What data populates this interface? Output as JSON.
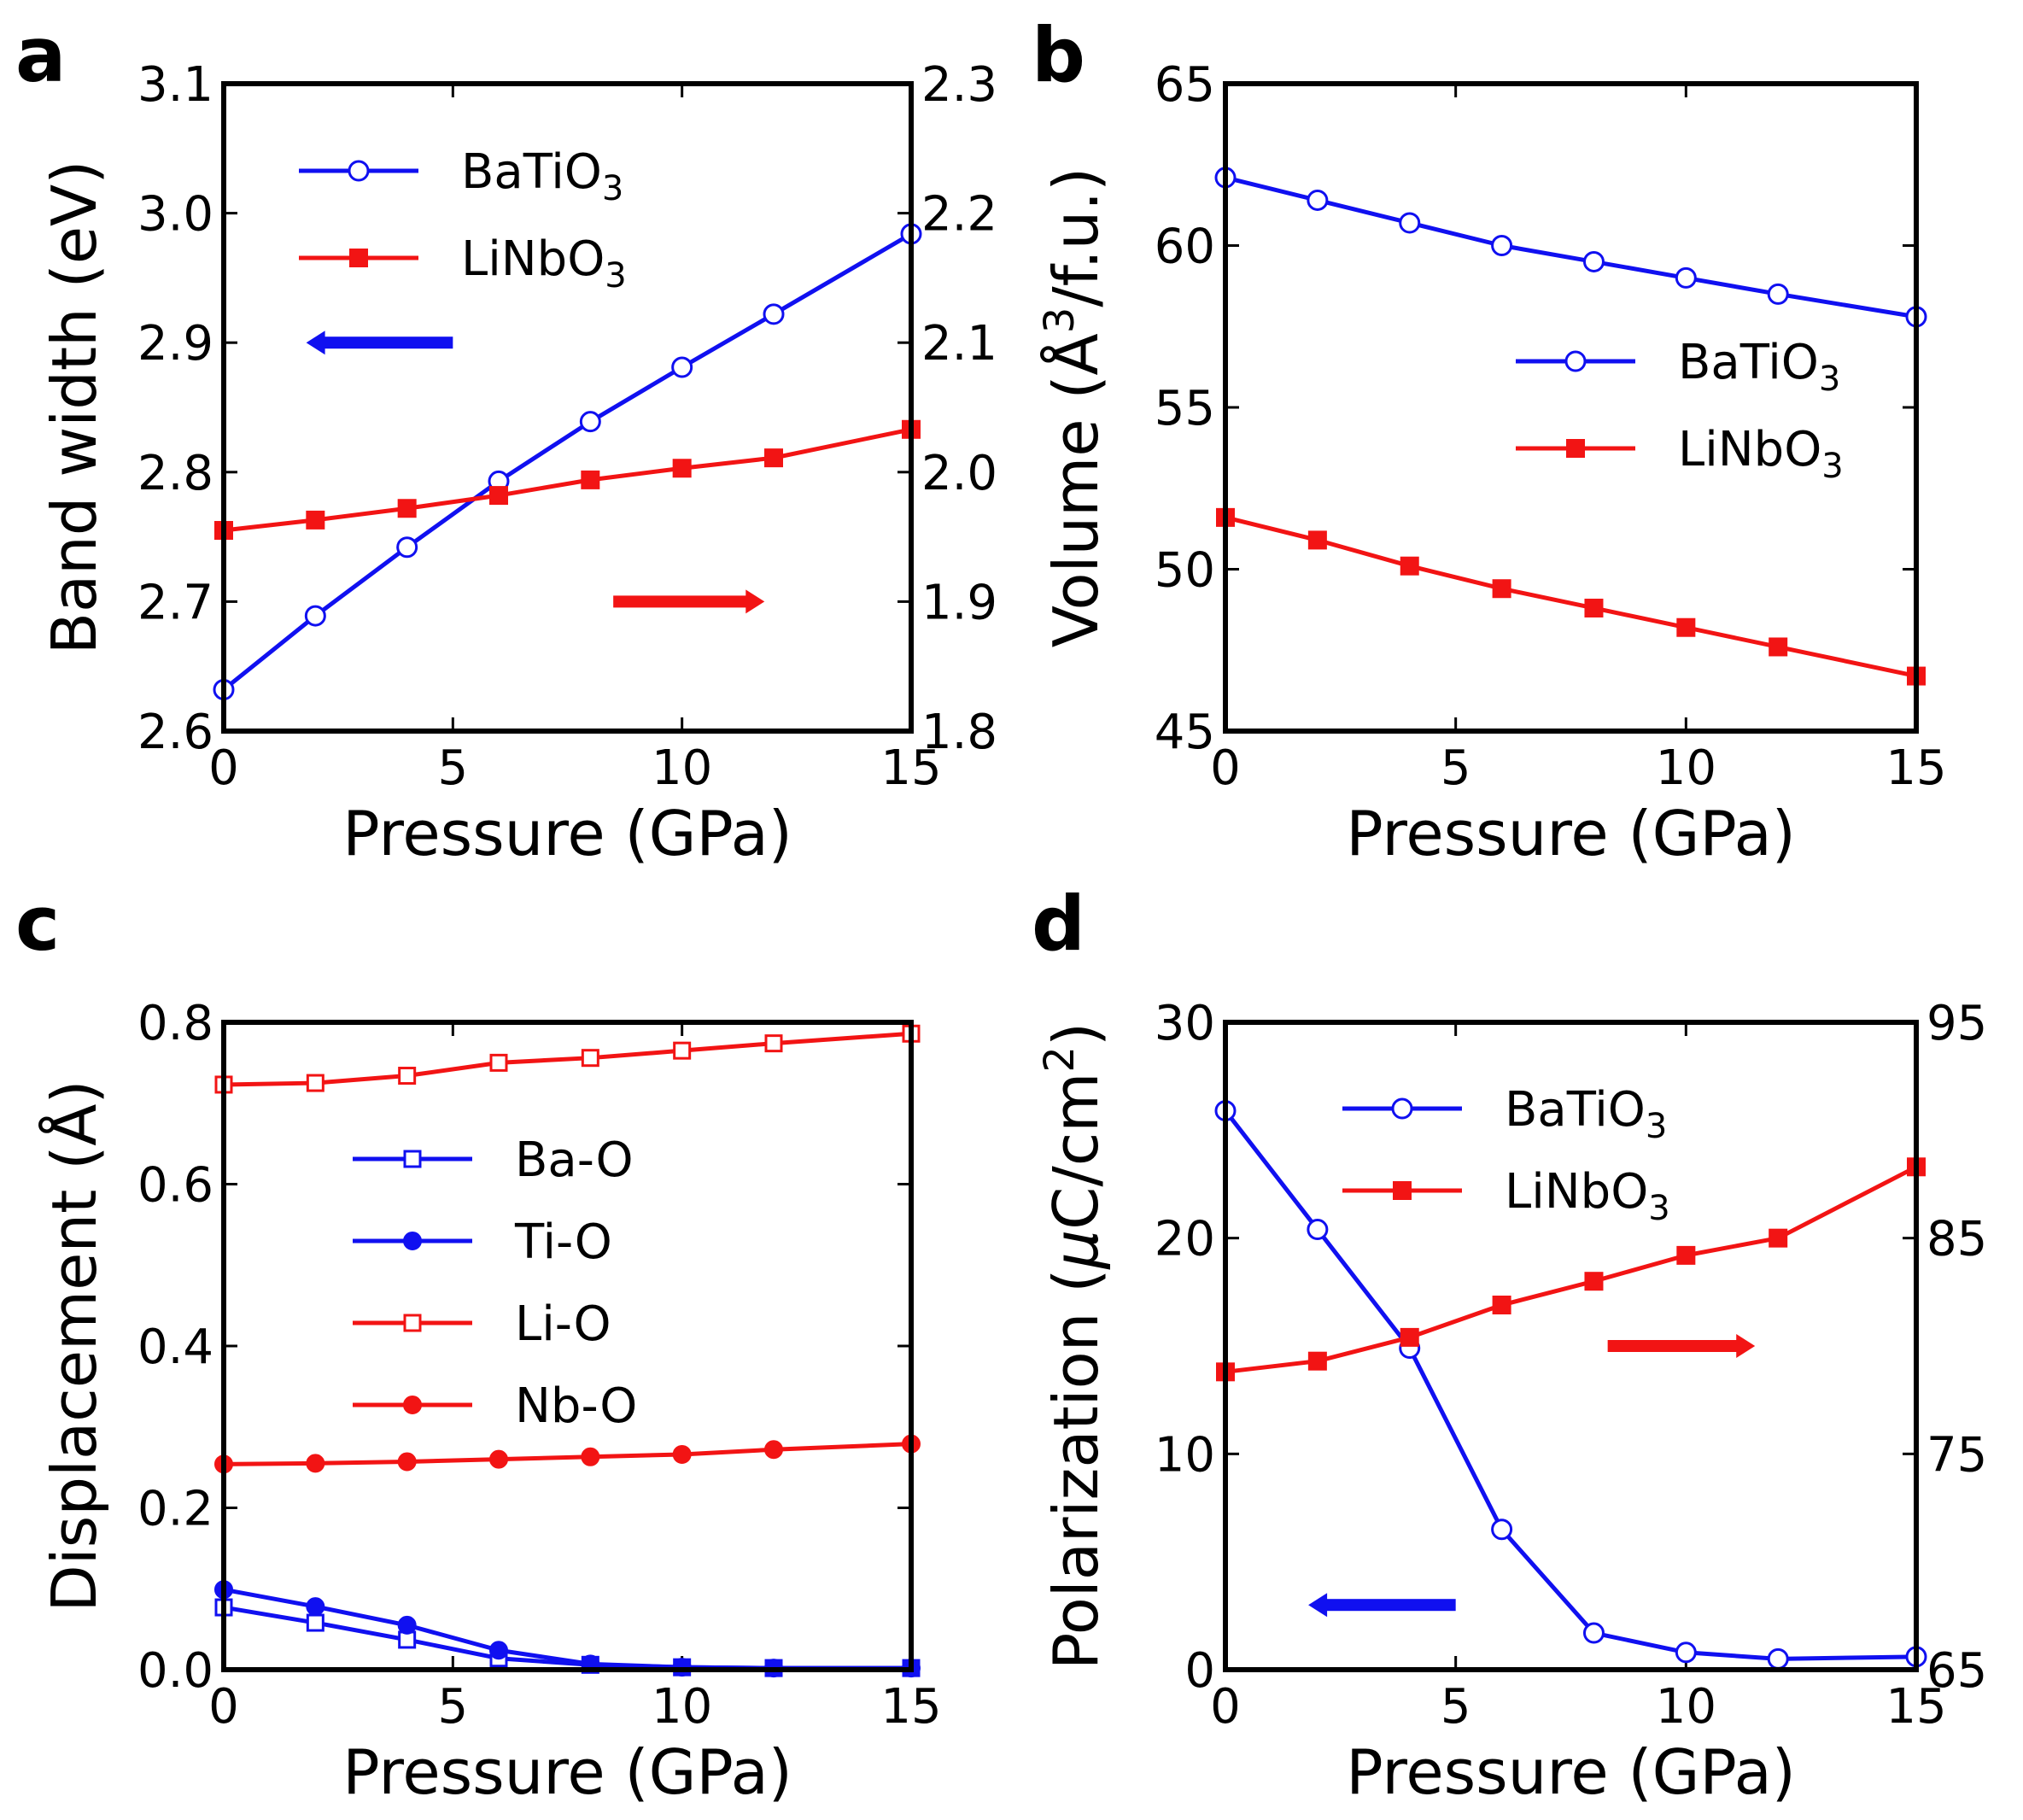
{
  "figure": "four-panel pressure dependence",
  "colors": {
    "blue": "#1010f0",
    "red": "#f21414",
    "axis": "#000000"
  },
  "chart_data": [
    {
      "panel": "a",
      "type": "line",
      "xlabel": "Pressure (GPa)",
      "ylabel": "Band width (eV)",
      "xlim": [
        0,
        15
      ],
      "xticks": [
        "0",
        "5",
        "10",
        "15"
      ],
      "ylim": [
        2.6,
        3.1
      ],
      "yticks": [
        "2.6",
        "2.7",
        "2.8",
        "2.9",
        "3.0",
        "3.1"
      ],
      "y2lim": [
        1.8,
        2.3
      ],
      "y2ticks": [
        "1.8",
        "1.9",
        "2.0",
        "2.1",
        "2.2",
        "2.3"
      ],
      "legend": "top-left",
      "series": [
        {
          "name": "BaTiO",
          "sub": "3",
          "axis": "left",
          "marker": "open-circle",
          "color": "blue",
          "x": [
            0,
            2,
            4,
            6,
            8,
            10,
            12,
            15
          ],
          "values": [
            2.632,
            2.689,
            2.742,
            2.793,
            2.839,
            2.881,
            2.922,
            2.984
          ]
        },
        {
          "name": "LiNbO",
          "sub": "3",
          "axis": "right",
          "marker": "filled-square",
          "color": "red",
          "x": [
            0,
            2,
            4,
            6,
            8,
            10,
            12,
            15
          ],
          "values": [
            1.955,
            1.963,
            1.972,
            1.982,
            1.994,
            2.003,
            2.011,
            2.033
          ]
        }
      ],
      "arrows": [
        {
          "color": "blue",
          "direction": "left",
          "x": [
            1.8,
            5
          ],
          "y": 2.9,
          "axis": "left"
        },
        {
          "color": "red",
          "direction": "right",
          "x": [
            8.5,
            11.8
          ],
          "y": 1.9,
          "axis": "right"
        }
      ]
    },
    {
      "panel": "b",
      "type": "line",
      "xlabel": "Pressure (GPa)",
      "ylabel_parts": [
        "Volume (Å",
        "3",
        "/f.u.)"
      ],
      "xlim": [
        0,
        15
      ],
      "xticks": [
        "0",
        "5",
        "10",
        "15"
      ],
      "ylim": [
        45,
        65
      ],
      "yticks": [
        "45",
        "50",
        "55",
        "60",
        "65"
      ],
      "legend": "center-right",
      "series": [
        {
          "name": "BaTiO",
          "sub": "3",
          "marker": "open-circle",
          "color": "blue",
          "x": [
            0,
            2,
            4,
            6,
            8,
            10,
            12,
            15
          ],
          "values": [
            62.1,
            61.4,
            60.7,
            60.0,
            59.5,
            59.0,
            58.5,
            57.8
          ]
        },
        {
          "name": "LiNbO",
          "sub": "3",
          "marker": "filled-square",
          "color": "red",
          "x": [
            0,
            2,
            4,
            6,
            8,
            10,
            12,
            15
          ],
          "values": [
            51.6,
            50.9,
            50.1,
            49.4,
            48.8,
            48.2,
            47.6,
            46.7
          ]
        }
      ]
    },
    {
      "panel": "c",
      "type": "line",
      "xlabel": "Pressure (GPa)",
      "ylabel": "Displacement (Å)",
      "xlim": [
        0,
        15
      ],
      "xticks": [
        "0",
        "5",
        "10",
        "15"
      ],
      "ylim": [
        0,
        0.8
      ],
      "yticks": [
        "0.0",
        "0.2",
        "0.4",
        "0.6",
        "0.8"
      ],
      "legend": "center-left",
      "series": [
        {
          "name": "Ba-O",
          "marker": "open-square",
          "color": "blue",
          "x": [
            0,
            2,
            4,
            6,
            8,
            10,
            12,
            15
          ],
          "values": [
            0.077,
            0.058,
            0.037,
            0.014,
            0.006,
            0.003,
            0.002,
            0.002
          ]
        },
        {
          "name": "Ti-O",
          "marker": "filled-circle",
          "color": "blue",
          "x": [
            0,
            2,
            4,
            6,
            8,
            10,
            12,
            15
          ],
          "values": [
            0.099,
            0.078,
            0.055,
            0.024,
            0.007,
            0.003,
            0.002,
            0.002
          ]
        },
        {
          "name": "Li-O",
          "marker": "open-square",
          "color": "red",
          "x": [
            0,
            2,
            4,
            6,
            8,
            10,
            12,
            15
          ],
          "values": [
            0.723,
            0.725,
            0.734,
            0.75,
            0.756,
            0.765,
            0.774,
            0.786
          ]
        },
        {
          "name": "Nb-O",
          "marker": "filled-circle",
          "color": "red",
          "x": [
            0,
            2,
            4,
            6,
            8,
            10,
            12,
            15
          ],
          "values": [
            0.254,
            0.255,
            0.257,
            0.26,
            0.263,
            0.266,
            0.272,
            0.279
          ]
        }
      ]
    },
    {
      "panel": "d",
      "type": "line",
      "xlabel": "Pressure (GPa)",
      "ylabel_parts": [
        "Polarization (",
        "μ",
        "C/cm",
        "2",
        ")"
      ],
      "xlim": [
        0,
        15
      ],
      "xticks": [
        "0",
        "5",
        "10",
        "15"
      ],
      "ylim": [
        0,
        30
      ],
      "yticks": [
        "0",
        "10",
        "20",
        "30"
      ],
      "y2lim": [
        65,
        95
      ],
      "y2ticks": [
        "65",
        "75",
        "85",
        "95"
      ],
      "legend": "top-center",
      "series": [
        {
          "name": "BaTiO",
          "sub": "3",
          "axis": "left",
          "marker": "open-circle",
          "color": "blue",
          "x": [
            0,
            2,
            4,
            6,
            8,
            10,
            12,
            15
          ],
          "values": [
            25.9,
            20.4,
            14.9,
            6.5,
            1.7,
            0.8,
            0.5,
            0.6
          ]
        },
        {
          "name": "LiNbO",
          "sub": "3",
          "axis": "right",
          "marker": "filled-square",
          "color": "red",
          "x": [
            0,
            2,
            4,
            6,
            8,
            10,
            12,
            15
          ],
          "values": [
            78.8,
            79.3,
            80.4,
            81.9,
            83.0,
            84.2,
            85.0,
            88.3
          ]
        }
      ],
      "arrows": [
        {
          "color": "blue",
          "direction": "left",
          "x": [
            1.8,
            5
          ],
          "y": 3,
          "axis": "left"
        },
        {
          "color": "red",
          "direction": "right",
          "x": [
            8.3,
            11.5
          ],
          "y": 80,
          "axis": "right"
        }
      ]
    }
  ]
}
